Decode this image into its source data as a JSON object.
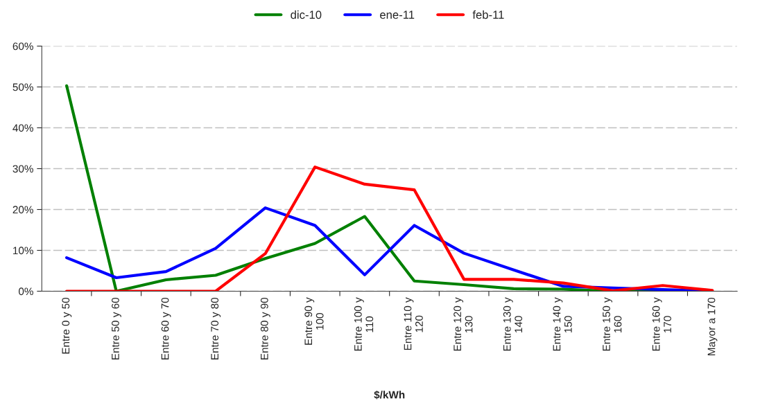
{
  "chart_data": {
    "type": "line",
    "xlabel": "$/kWh",
    "categories": [
      "Entre 0 y 50",
      "Entre 50 y 60",
      "Entre 60 y 70",
      "Entre 70 y 80",
      "Entre 80 y 90",
      "Entre 90 y\n100",
      "Entre 100 y\n110",
      "Entre 110 y\n120",
      "Entre 120 y\n130",
      "Entre 130 y\n140",
      "Entre 140 y\n150",
      "Entre 150 y\n160",
      "Entre 160 y\n170",
      "Mayor a 170"
    ],
    "series": [
      {
        "name": "dic-10",
        "color": "#008000",
        "values": [
          50.3,
          0,
          2.8,
          3.9,
          8,
          11.7,
          18.3,
          2.5,
          1.6,
          0.6,
          0.5,
          0,
          0,
          0
        ]
      },
      {
        "name": "ene-11",
        "color": "#0000ff",
        "values": [
          8.2,
          3.3,
          4.8,
          10.5,
          20.4,
          16.1,
          4.0,
          16.1,
          9.3,
          5.2,
          1.2,
          0.8,
          0.4,
          0
        ]
      },
      {
        "name": "feb-11",
        "color": "#ff0000",
        "values": [
          0,
          0,
          0,
          0,
          9.2,
          30.4,
          26.2,
          24.8,
          2.9,
          2.9,
          2.0,
          0.1,
          1.4,
          0.2
        ]
      }
    ],
    "ylim": [
      0,
      60
    ],
    "yticks": [
      {
        "value": 0,
        "label": "0%"
      },
      {
        "value": 10,
        "label": "10%"
      },
      {
        "value": 20,
        "label": "20%"
      },
      {
        "value": 30,
        "label": "30%"
      },
      {
        "value": 40,
        "label": "40%"
      },
      {
        "value": 50,
        "label": "50%"
      },
      {
        "value": 60,
        "label": "60%"
      }
    ],
    "grid": "y",
    "legend": "top",
    "marker": "none",
    "line_style": "solid"
  }
}
